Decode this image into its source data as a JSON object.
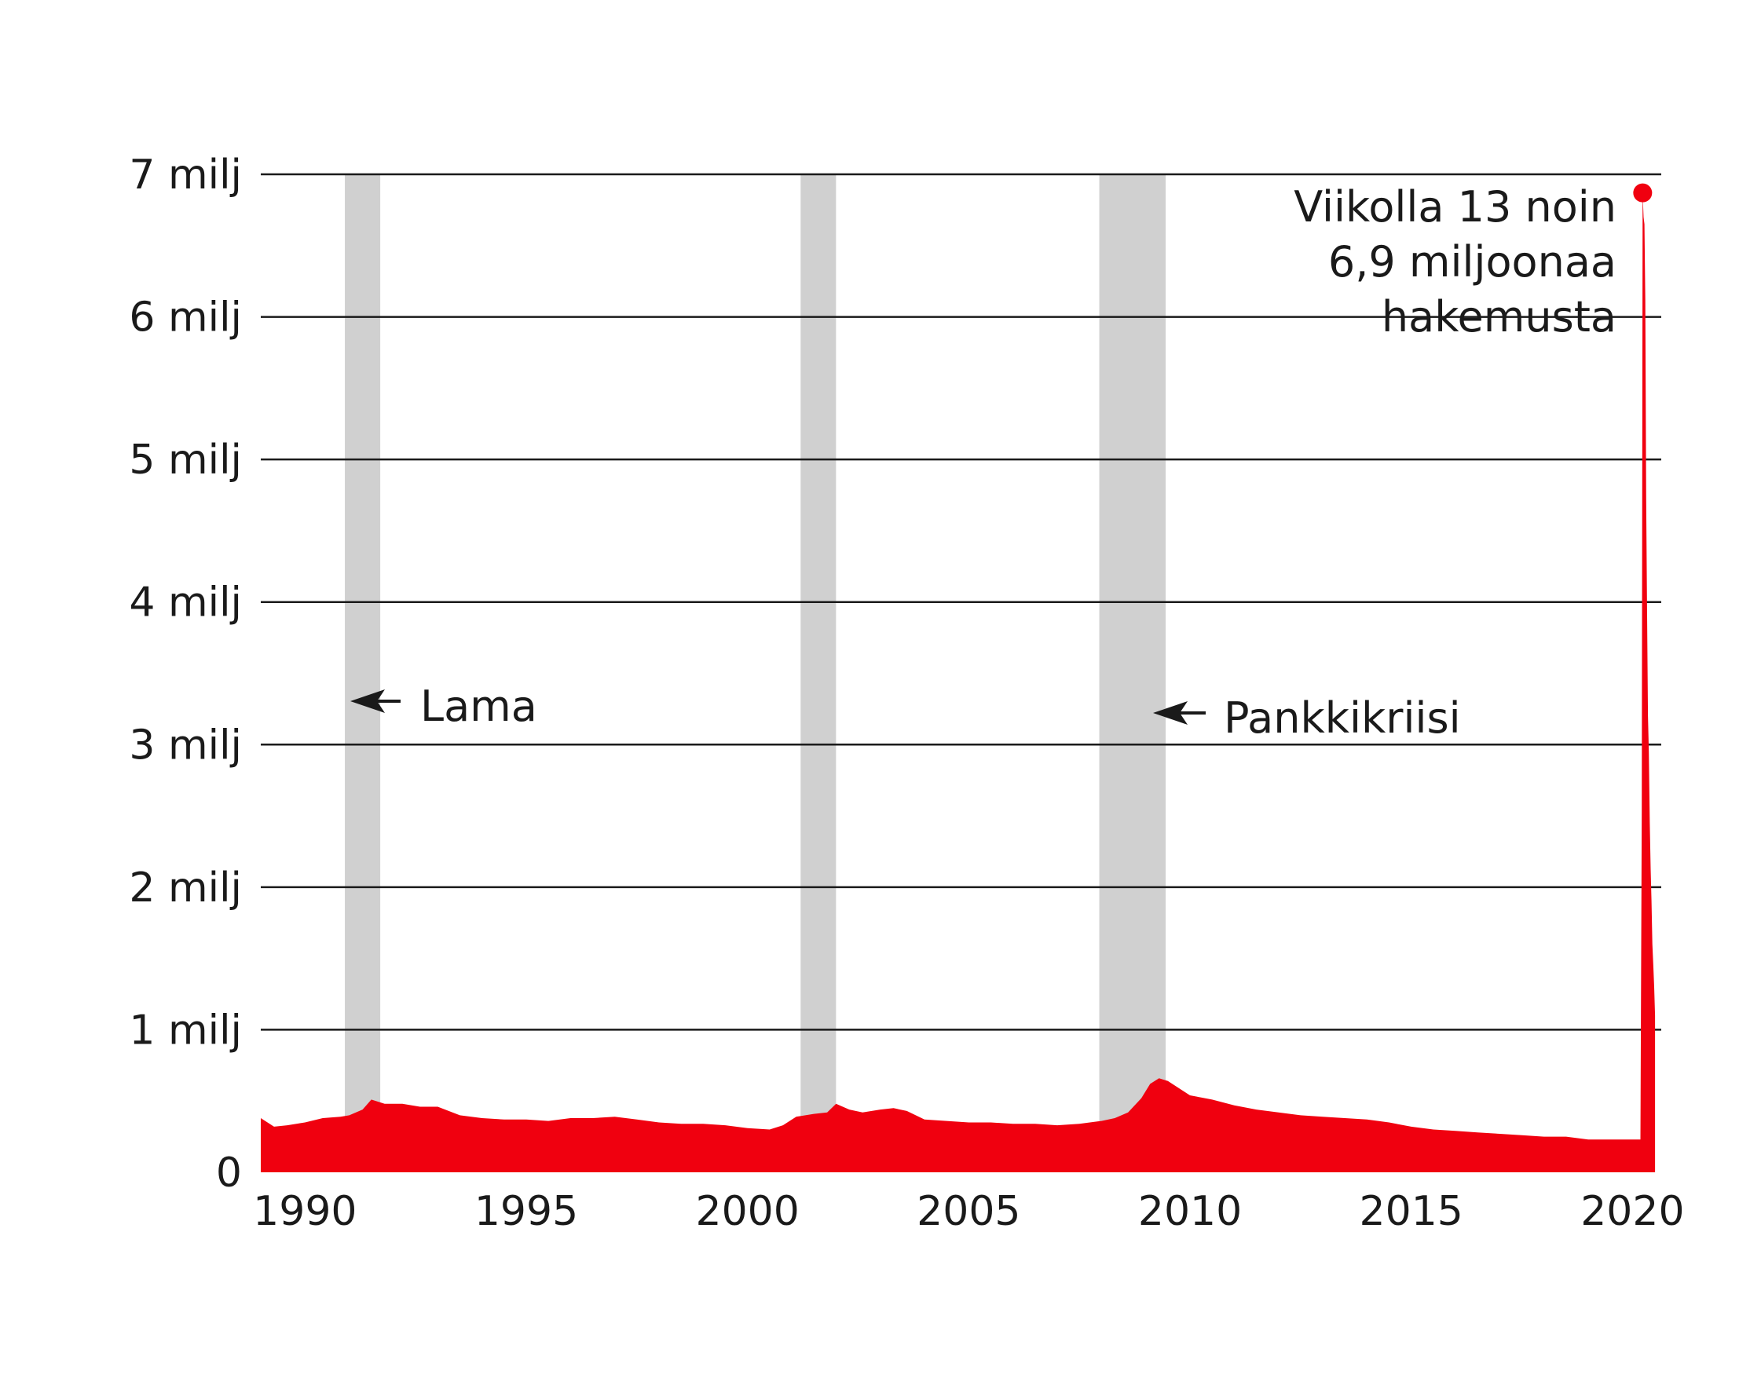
{
  "chart_data": {
    "type": "area",
    "ylim": [
      0,
      7000000
    ],
    "xlim": [
      1989.0,
      2020.65
    ],
    "y_ticks": [
      {
        "value": 0,
        "label": "0"
      },
      {
        "value": 1000000,
        "label": "1 milj"
      },
      {
        "value": 2000000,
        "label": "2 milj"
      },
      {
        "value": 3000000,
        "label": "3 milj"
      },
      {
        "value": 4000000,
        "label": "4 milj"
      },
      {
        "value": 5000000,
        "label": "5 milj"
      },
      {
        "value": 6000000,
        "label": "6 milj"
      },
      {
        "value": 7000000,
        "label": "7 milj"
      }
    ],
    "x_ticks": [
      {
        "value": 1990,
        "label": "1990"
      },
      {
        "value": 1995,
        "label": "1995"
      },
      {
        "value": 2000,
        "label": "2000"
      },
      {
        "value": 2005,
        "label": "2005"
      },
      {
        "value": 2010,
        "label": "2010"
      },
      {
        "value": 2015,
        "label": "2015"
      },
      {
        "value": 2020,
        "label": "2020"
      }
    ],
    "grid": true,
    "recession_bands": [
      {
        "start": 1990.9,
        "end": 1991.7
      },
      {
        "start": 2001.2,
        "end": 2002.0
      },
      {
        "start": 2007.95,
        "end": 2009.45
      }
    ],
    "series": [
      {
        "color": "#f0000f",
        "x": [
          1989.0,
          1989.3,
          1989.6,
          1990.0,
          1990.4,
          1990.8,
          1991.0,
          1991.3,
          1991.5,
          1991.8,
          1992.2,
          1992.6,
          1993.0,
          1993.5,
          1994.0,
          1994.5,
          1995.0,
          1995.5,
          1996.0,
          1996.5,
          1997.0,
          1997.5,
          1998.0,
          1998.5,
          1999.0,
          1999.5,
          2000.0,
          2000.5,
          2000.8,
          2001.1,
          2001.5,
          2001.8,
          2002.0,
          2002.3,
          2002.6,
          2003.0,
          2003.3,
          2003.6,
          2004.0,
          2004.5,
          2005.0,
          2005.5,
          2006.0,
          2006.5,
          2007.0,
          2007.5,
          2008.0,
          2008.3,
          2008.6,
          2008.9,
          2009.1,
          2009.3,
          2009.5,
          2009.8,
          2010.0,
          2010.5,
          2011.0,
          2011.5,
          2012.0,
          2012.5,
          2013.0,
          2013.5,
          2014.0,
          2014.5,
          2015.0,
          2015.5,
          2016.0,
          2016.5,
          2017.0,
          2017.5,
          2018.0,
          2018.5,
          2019.0,
          2019.5,
          2019.9,
          2020.18,
          2020.21,
          2020.23,
          2020.25,
          2020.27,
          2020.29,
          2020.31,
          2020.33,
          2020.35,
          2020.37,
          2020.39,
          2020.41,
          2020.43,
          2020.45,
          2020.47,
          2020.49,
          2020.51
        ],
        "values": [
          380000,
          320000,
          330000,
          350000,
          380000,
          390000,
          400000,
          440000,
          510000,
          480000,
          480000,
          460000,
          460000,
          400000,
          380000,
          370000,
          370000,
          360000,
          380000,
          380000,
          390000,
          370000,
          350000,
          340000,
          340000,
          330000,
          310000,
          300000,
          330000,
          390000,
          410000,
          420000,
          480000,
          440000,
          420000,
          440000,
          450000,
          430000,
          370000,
          360000,
          350000,
          350000,
          340000,
          340000,
          330000,
          340000,
          360000,
          380000,
          420000,
          520000,
          620000,
          660000,
          640000,
          580000,
          540000,
          510000,
          470000,
          440000,
          420000,
          400000,
          390000,
          380000,
          370000,
          350000,
          320000,
          300000,
          290000,
          280000,
          270000,
          260000,
          250000,
          250000,
          230000,
          230000,
          230000,
          230000,
          2550000,
          6870000,
          6700000,
          6650000,
          6120000,
          4730000,
          3900000,
          3200000,
          2950000,
          2450000,
          2130000,
          1900000,
          1600000,
          1450000,
          1300000,
          1100000
        ]
      }
    ],
    "peak": {
      "x": 2020.23,
      "value": 6870000
    },
    "annotations": [
      {
        "text": "Lama"
      },
      {
        "text": "Pankkikriisi"
      },
      {
        "lines": [
          "Viikolla 13 noin",
          "6,9 miljoonaa",
          "hakemusta"
        ]
      }
    ]
  }
}
